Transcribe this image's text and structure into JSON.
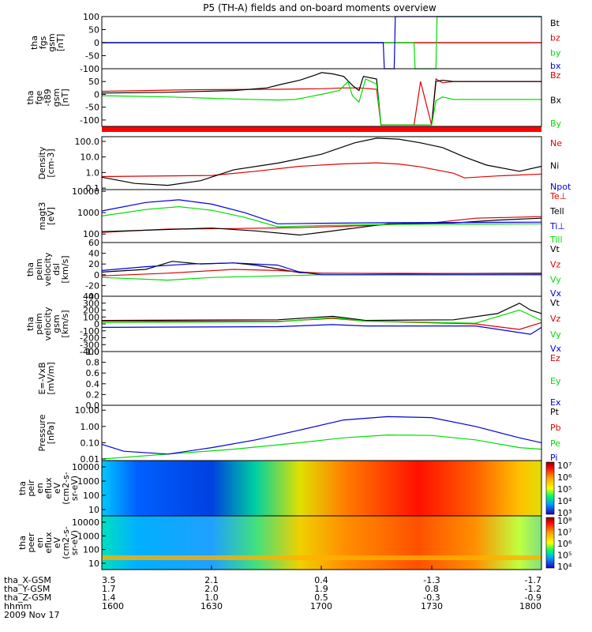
{
  "title": "P5 (TH-A) fields and on-board moments overview",
  "colors": {
    "black": "#000000",
    "red": "#e00000",
    "green": "#00dd00",
    "blue": "#0000dd",
    "navy": "#0000a0"
  },
  "chart_data": [
    {
      "type": "line",
      "id": "fgs",
      "ylabel": [
        "tha",
        "fgs",
        "gsm",
        "[nT]"
      ],
      "yticks": [
        "100",
        "50",
        "0",
        "-50",
        "-100"
      ],
      "ylim": [
        -100,
        100
      ],
      "series": [
        {
          "name": "Bt",
          "color": "black",
          "x": [
            1600,
            1800
          ],
          "y": [
            0,
            0
          ]
        },
        {
          "name": "bz",
          "color": "red",
          "x": [
            1600,
            1800
          ],
          "y": [
            0,
            0
          ]
        },
        {
          "name": "by",
          "color": "green",
          "x": [
            1600,
            1742,
            1742.5,
            1752,
            1752.5,
            1800
          ],
          "y": [
            0,
            0,
            -100,
            -100,
            100,
            100
          ]
        },
        {
          "name": "bx",
          "color": "blue",
          "x": [
            1600,
            1728,
            1728.5,
            1733,
            1733.5,
            1800
          ],
          "y": [
            0,
            0,
            -100,
            -100,
            100,
            100
          ]
        }
      ]
    },
    {
      "type": "line",
      "id": "fge",
      "ylabel": [
        "tha",
        "fge",
        "-t89",
        "gsm",
        "[nT]"
      ],
      "yticks": [
        "50",
        "0",
        "-50",
        "-100"
      ],
      "ylim": [
        -125,
        100
      ],
      "series": [
        {
          "name": "Bz",
          "color": "red",
          "x": [
            1600,
            1640,
            1680,
            1700,
            1710,
            1717,
            1725,
            1727,
            1742,
            1745,
            1750,
            1752,
            1755,
            1760,
            1800
          ],
          "y": [
            12,
            18,
            20,
            22,
            25,
            25,
            20,
            -120,
            -120,
            50,
            -120,
            60,
            45,
            50,
            50
          ]
        },
        {
          "name": "Bx",
          "color": "black",
          "x": [
            1600,
            1630,
            1660,
            1675,
            1682,
            1690,
            1697,
            1700,
            1705,
            1710,
            1714,
            1717,
            1719,
            1725,
            1727,
            1750,
            1752,
            1755,
            1760,
            1800
          ],
          "y": [
            5,
            8,
            15,
            25,
            40,
            55,
            75,
            85,
            80,
            70,
            35,
            15,
            70,
            60,
            -120,
            -120,
            50,
            55,
            50,
            50
          ]
        },
        {
          "name": "By",
          "color": "green",
          "x": [
            1600,
            1630,
            1660,
            1680,
            1688,
            1694,
            1700,
            1708,
            1712,
            1714,
            1717,
            1720,
            1725,
            1727,
            1742,
            1750,
            1752,
            1755,
            1760,
            1800
          ],
          "y": [
            -5,
            -10,
            -18,
            -22,
            -20,
            -10,
            0,
            15,
            50,
            -5,
            -30,
            60,
            40,
            -120,
            -120,
            -120,
            -25,
            -10,
            -20,
            -20
          ]
        }
      ]
    },
    {
      "type": "line",
      "id": "density",
      "yscale": "log",
      "ylabel": [
        "Density",
        "[cm-3]"
      ],
      "yticks": [
        "100.0",
        "10.0",
        "1.0",
        "0.1"
      ],
      "ylim": [
        0.08,
        200
      ],
      "series": [
        {
          "name": "Ne",
          "color": "red",
          "x": [
            1600,
            1650,
            1670,
            1690,
            1710,
            1725,
            1735,
            1745,
            1760,
            1765,
            1780,
            1800
          ],
          "y": [
            0.55,
            0.65,
            1.2,
            2.5,
            3.6,
            4.2,
            3.5,
            2.3,
            0.9,
            0.45,
            0.6,
            0.8
          ]
        },
        {
          "name": "Ni",
          "color": "black",
          "x": [
            1600,
            1615,
            1630,
            1645,
            1660,
            1680,
            1700,
            1715,
            1725,
            1735,
            1745,
            1755,
            1765,
            1775,
            1790,
            1800
          ],
          "y": [
            0.5,
            0.2,
            0.15,
            0.3,
            1.5,
            4,
            15,
            80,
            160,
            140,
            80,
            40,
            10,
            3,
            1.2,
            2.5
          ]
        },
        {
          "name": "Npot",
          "color": "blue",
          "x": [],
          "y": []
        }
      ]
    },
    {
      "type": "line",
      "id": "temperature",
      "yscale": "log",
      "ylabel": [
        "magt3",
        "[eV]"
      ],
      "yticks": [
        "10000",
        "1000",
        "100"
      ],
      "ylim": [
        40,
        12000
      ],
      "series": [
        {
          "name": "Te⊥",
          "color": "red",
          "x": [
            1600,
            1630,
            1660,
            1690,
            1720,
            1750,
            1770,
            1800
          ],
          "y": [
            120,
            170,
            180,
            200,
            250,
            330,
            550,
            650
          ]
        },
        {
          "name": "Tell",
          "color": "black",
          "x": [
            1600,
            1650,
            1670,
            1690,
            1700,
            1730,
            1760,
            1780,
            1800
          ],
          "y": [
            130,
            190,
            140,
            90,
            120,
            300,
            330,
            450,
            550
          ]
        },
        {
          "name": "Ti⊥",
          "color": "blue",
          "x": [
            1600,
            1620,
            1635,
            1650,
            1665,
            1680,
            1700,
            1730,
            1800
          ],
          "y": [
            1200,
            3000,
            4000,
            2500,
            1000,
            300,
            320,
            340,
            360
          ]
        },
        {
          "name": "Till",
          "color": "green",
          "x": [
            1600,
            1620,
            1635,
            1650,
            1665,
            1680,
            1700,
            1730,
            1800
          ],
          "y": [
            700,
            1400,
            1900,
            1300,
            600,
            220,
            250,
            280,
            300
          ]
        }
      ]
    },
    {
      "type": "line",
      "id": "vel-dsl",
      "ylabel": [
        "tha",
        "peim",
        "velocity",
        "dsl",
        "[km/s]"
      ],
      "yticks": [
        "60",
        "40",
        "20",
        "0",
        "-20",
        "-40"
      ],
      "ylim": [
        -40,
        60
      ],
      "series": [
        {
          "name": "Vt",
          "color": "black",
          "x": [
            1600,
            1620,
            1632,
            1645,
            1660,
            1670,
            1690,
            1700,
            1740,
            1800
          ],
          "y": [
            5,
            10,
            25,
            20,
            22,
            18,
            4,
            3,
            2,
            3
          ]
        },
        {
          "name": "Vz",
          "color": "red",
          "x": [
            1600,
            1630,
            1660,
            1680,
            1700,
            1800
          ],
          "y": [
            -2,
            3,
            10,
            8,
            3,
            2
          ]
        },
        {
          "name": "Vy",
          "color": "green",
          "x": [
            1600,
            1630,
            1650,
            1680,
            1700,
            1800
          ],
          "y": [
            -5,
            -10,
            -5,
            -2,
            0,
            0
          ]
        },
        {
          "name": "Vx",
          "color": "blue",
          "x": [
            1600,
            1620,
            1640,
            1660,
            1680,
            1690,
            1700,
            1800
          ],
          "y": [
            8,
            15,
            20,
            22,
            18,
            5,
            0,
            0
          ]
        }
      ]
    },
    {
      "type": "line",
      "id": "vel-gsm",
      "ylabel": [
        "tha",
        "peim",
        "velocity",
        "gsm",
        "[km/s]"
      ],
      "yticks": [
        "400",
        "300",
        "200",
        "100",
        "0",
        "-100",
        "-200",
        "-300",
        "-400"
      ],
      "ylim": [
        -400,
        400
      ],
      "series": [
        {
          "name": "Vt",
          "color": "black",
          "x": [
            1600,
            1680,
            1705,
            1720,
            1760,
            1780,
            1790,
            1795,
            1800
          ],
          "y": [
            50,
            60,
            110,
            50,
            60,
            150,
            300,
            200,
            150
          ]
        },
        {
          "name": "Vz",
          "color": "red",
          "x": [
            1600,
            1680,
            1705,
            1720,
            1770,
            1790,
            1800
          ],
          "y": [
            40,
            35,
            80,
            40,
            0,
            -80,
            20
          ]
        },
        {
          "name": "Vy",
          "color": "green",
          "x": [
            1600,
            1680,
            1705,
            1720,
            1770,
            1790,
            1800
          ],
          "y": [
            20,
            30,
            90,
            40,
            10,
            200,
            50
          ]
        },
        {
          "name": "Vx",
          "color": "blue",
          "x": [
            1600,
            1680,
            1705,
            1720,
            1770,
            1795,
            1800
          ],
          "y": [
            -50,
            -40,
            -10,
            -30,
            -30,
            -150,
            -50
          ]
        }
      ]
    },
    {
      "type": "line",
      "id": "efield",
      "ylabel": [
        "E=-VxB",
        "[mV/m]"
      ],
      "yticks": [
        "1.0",
        "0.8",
        "0.6",
        "0.4",
        "0.2",
        "0.0"
      ],
      "ylim": [
        0,
        1
      ],
      "series": [
        {
          "name": "Ez",
          "color": "red",
          "x": [],
          "y": []
        },
        {
          "name": "Ey",
          "color": "green",
          "x": [],
          "y": []
        },
        {
          "name": "Ex",
          "color": "blue",
          "x": [],
          "y": []
        }
      ]
    },
    {
      "type": "line",
      "id": "pressure",
      "yscale": "log",
      "ylabel": [
        "Pressure",
        "[nPa]"
      ],
      "yticks": [
        "10.00",
        "1.00",
        "0.10",
        "0.01"
      ],
      "ylim": [
        0.008,
        20
      ],
      "series": [
        {
          "name": "Pt",
          "color": "black",
          "x": [],
          "y": []
        },
        {
          "name": "Pb",
          "color": "red",
          "x": [],
          "y": []
        },
        {
          "name": "Pe",
          "color": "green",
          "x": [
            1600,
            1630,
            1660,
            1690,
            1710,
            1730,
            1750,
            1770,
            1790,
            1800
          ],
          "y": [
            0.01,
            0.02,
            0.04,
            0.1,
            0.2,
            0.3,
            0.28,
            0.15,
            0.05,
            0.04
          ]
        },
        {
          "name": "Pi",
          "color": "blue",
          "x": [
            1600,
            1610,
            1630,
            1650,
            1670,
            1690,
            1710,
            1730,
            1750,
            1770,
            1790,
            1800
          ],
          "y": [
            0.08,
            0.03,
            0.02,
            0.05,
            0.15,
            0.6,
            2.5,
            4.0,
            3.5,
            1.0,
            0.2,
            0.1
          ]
        }
      ]
    },
    {
      "type": "heatmap",
      "id": "ion-efl",
      "ylabel": [
        "tha",
        "peir",
        "en",
        "eflux",
        "eV",
        "(cm2-s-",
        "sr-eV)"
      ],
      "yticks": [
        "10000",
        "1000",
        "100",
        "10"
      ],
      "colorbar": [
        "10⁷",
        "10⁶",
        "10⁵",
        "10⁴",
        "10³"
      ]
    },
    {
      "type": "heatmap",
      "id": "elec-efl",
      "ylabel": [
        "tha",
        "peer",
        "en",
        "eflux",
        "eV",
        "(cm2-s-",
        "sr-eV)"
      ],
      "yticks": [
        "10000",
        "1000",
        "100",
        "10"
      ],
      "colorbar": [
        "10⁸",
        "10⁷",
        "10⁶",
        "10⁵",
        "10⁴"
      ]
    }
  ],
  "xaxis": {
    "rows": [
      {
        "label": "tha_X-GSM",
        "values": [
          "3.5",
          "2.1",
          "0.4",
          "-1.3",
          "-1.7"
        ]
      },
      {
        "label": "tha_Y-GSM",
        "values": [
          "1.7",
          "2.0",
          "1.9",
          "0.8",
          "-1.2"
        ]
      },
      {
        "label": "tha_Z-GSM",
        "values": [
          "1.4",
          "1.0",
          "0.5",
          "-0.3",
          "-0.9"
        ]
      },
      {
        "label": "hhmm",
        "values": [
          "1600",
          "1630",
          "1700",
          "1730",
          "1800"
        ]
      }
    ],
    "date": "2009 Nov 17"
  }
}
